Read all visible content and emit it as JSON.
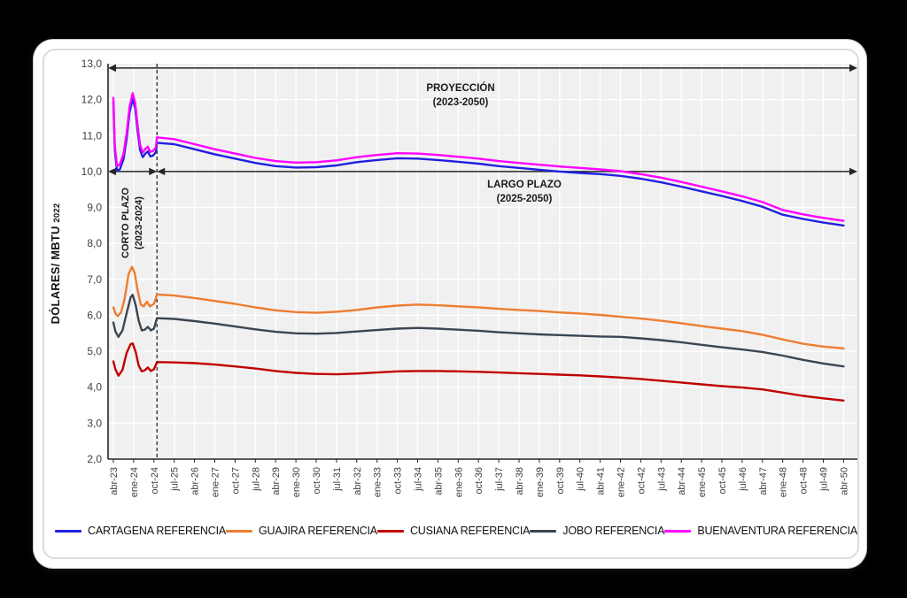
{
  "figure": {
    "background": "#000000",
    "card_background": "#FFFFFF"
  },
  "annotations": {
    "proyeccion_line1": "PROYECCIÓN",
    "proyeccion_line2": "(2023-2050)",
    "largo_line1": "LARGO PLAZO",
    "largo_line2": "(2025-2050)",
    "corto_line1": "CORTO PLAZO",
    "corto_line2": "(2023-2024)",
    "y_axis_title": "DÓLARES/ MBTU",
    "y_axis_title_suffix": "2022"
  },
  "chart_data": {
    "type": "line",
    "title": "",
    "xlabel": "",
    "ylabel": "DÓLARES/ MBTU 2022",
    "ylim": [
      2,
      13
    ],
    "grid": true,
    "legend_position": "bottom",
    "plot_background": "#F1F0F0",
    "gridline_color": "#FFFFFF",
    "axis_color": "#262626",
    "y_ticks": [
      "13,0",
      "12,0",
      "11,0",
      "10,0",
      "9,0",
      "8,0",
      "7,0",
      "6,0",
      "5,0",
      "4,0",
      "3,0",
      "2,0"
    ],
    "x_tick_labels": [
      "abr-23",
      "ene-24",
      "oct-24",
      "jul-25",
      "abr-26",
      "ene-27",
      "oct-27",
      "jul-28",
      "abr-29",
      "ene-30",
      "oct-30",
      "jul-31",
      "abr-32",
      "ene-33",
      "oct-33",
      "jul-34",
      "abr-35",
      "ene-36",
      "oct-36",
      "jul-37",
      "abr-38",
      "ene-39",
      "oct-39",
      "jul-40",
      "abr-41",
      "ene-42",
      "oct-42",
      "jul-43",
      "abr-44",
      "ene-45",
      "oct-45",
      "jul-46",
      "abr-47",
      "ene-48",
      "oct-48",
      "jul-49",
      "abr-50"
    ],
    "x_tick_spacing_months": 9,
    "dashed_divider_x": 2.15,
    "arrows": [
      {
        "id": "proyeccion-span",
        "label": "PROYECCIÓN (2023-2050)",
        "y_value": 12.88,
        "x_start": "plot-left",
        "x_end": "plot-right"
      },
      {
        "id": "corto-plazo-span",
        "label": "CORTO PLAZO (2023-2024)",
        "y_value": 10.0,
        "x_start": "plot-left",
        "x_end": "divider"
      },
      {
        "id": "largo-plazo-span",
        "label": "LARGO PLAZO (2025-2050)",
        "y_value": 10.0,
        "x_start": "divider",
        "x_end": "plot-right"
      }
    ],
    "series": [
      {
        "name": "CARTAGENA REFERENCIA",
        "color": "#2020E0",
        "points": [
          [
            0,
            11.95
          ],
          [
            0.07,
            10.6
          ],
          [
            0.18,
            10.02
          ],
          [
            0.32,
            10.06
          ],
          [
            0.5,
            10.35
          ],
          [
            0.65,
            10.9
          ],
          [
            0.8,
            11.65
          ],
          [
            0.95,
            12.02
          ],
          [
            1.08,
            11.75
          ],
          [
            1.2,
            11.1
          ],
          [
            1.32,
            10.6
          ],
          [
            1.45,
            10.4
          ],
          [
            1.58,
            10.5
          ],
          [
            1.7,
            10.56
          ],
          [
            1.82,
            10.42
          ],
          [
            1.95,
            10.44
          ],
          [
            2.1,
            10.55
          ],
          [
            2.15,
            10.8
          ],
          [
            3,
            10.76
          ],
          [
            4,
            10.62
          ],
          [
            5,
            10.48
          ],
          [
            6,
            10.36
          ],
          [
            7,
            10.24
          ],
          [
            8,
            10.15
          ],
          [
            9,
            10.11
          ],
          [
            10,
            10.12
          ],
          [
            11,
            10.17
          ],
          [
            12,
            10.26
          ],
          [
            13,
            10.32
          ],
          [
            14,
            10.37
          ],
          [
            15,
            10.36
          ],
          [
            16,
            10.32
          ],
          [
            17,
            10.27
          ],
          [
            18,
            10.22
          ],
          [
            19,
            10.15
          ],
          [
            20,
            10.1
          ],
          [
            21,
            10.05
          ],
          [
            22,
            10.0
          ],
          [
            23,
            9.96
          ],
          [
            24,
            9.93
          ],
          [
            25,
            9.88
          ],
          [
            26,
            9.8
          ],
          [
            27,
            9.7
          ],
          [
            28,
            9.58
          ],
          [
            29,
            9.45
          ],
          [
            30,
            9.32
          ],
          [
            31,
            9.18
          ],
          [
            32,
            9.02
          ],
          [
            33,
            8.8
          ],
          [
            34,
            8.68
          ],
          [
            35,
            8.58
          ],
          [
            36,
            8.5
          ]
        ]
      },
      {
        "name": "GUAJIRA REFERENCIA",
        "color": "#ED7D31",
        "points": [
          [
            0,
            6.22
          ],
          [
            0.1,
            6.05
          ],
          [
            0.22,
            5.98
          ],
          [
            0.38,
            6.08
          ],
          [
            0.55,
            6.45
          ],
          [
            0.75,
            7.15
          ],
          [
            0.92,
            7.35
          ],
          [
            1.05,
            7.18
          ],
          [
            1.2,
            6.68
          ],
          [
            1.35,
            6.3
          ],
          [
            1.5,
            6.25
          ],
          [
            1.65,
            6.38
          ],
          [
            1.8,
            6.25
          ],
          [
            2.0,
            6.32
          ],
          [
            2.15,
            6.58
          ],
          [
            3,
            6.55
          ],
          [
            4,
            6.48
          ],
          [
            5,
            6.4
          ],
          [
            6,
            6.32
          ],
          [
            7,
            6.22
          ],
          [
            8,
            6.14
          ],
          [
            9,
            6.09
          ],
          [
            10,
            6.07
          ],
          [
            11,
            6.1
          ],
          [
            12,
            6.15
          ],
          [
            13,
            6.22
          ],
          [
            14,
            6.27
          ],
          [
            15,
            6.3
          ],
          [
            16,
            6.28
          ],
          [
            17,
            6.25
          ],
          [
            18,
            6.22
          ],
          [
            19,
            6.18
          ],
          [
            20,
            6.15
          ],
          [
            21,
            6.12
          ],
          [
            22,
            6.08
          ],
          [
            23,
            6.05
          ],
          [
            24,
            6.01
          ],
          [
            25,
            5.96
          ],
          [
            26,
            5.91
          ],
          [
            27,
            5.85
          ],
          [
            28,
            5.78
          ],
          [
            29,
            5.7
          ],
          [
            30,
            5.63
          ],
          [
            31,
            5.56
          ],
          [
            32,
            5.46
          ],
          [
            33,
            5.33
          ],
          [
            34,
            5.21
          ],
          [
            35,
            5.13
          ],
          [
            36,
            5.08
          ]
        ]
      },
      {
        "name": "CUSIANA REFERENCIA",
        "color": "#C00000",
        "points": [
          [
            0,
            4.72
          ],
          [
            0.1,
            4.5
          ],
          [
            0.25,
            4.32
          ],
          [
            0.45,
            4.48
          ],
          [
            0.65,
            4.95
          ],
          [
            0.85,
            5.2
          ],
          [
            0.95,
            5.22
          ],
          [
            1.1,
            4.98
          ],
          [
            1.25,
            4.6
          ],
          [
            1.4,
            4.44
          ],
          [
            1.55,
            4.47
          ],
          [
            1.7,
            4.55
          ],
          [
            1.85,
            4.45
          ],
          [
            2.0,
            4.5
          ],
          [
            2.15,
            4.7
          ],
          [
            3,
            4.69
          ],
          [
            4,
            4.67
          ],
          [
            5,
            4.63
          ],
          [
            6,
            4.58
          ],
          [
            7,
            4.52
          ],
          [
            8,
            4.45
          ],
          [
            9,
            4.4
          ],
          [
            10,
            4.37
          ],
          [
            11,
            4.36
          ],
          [
            12,
            4.38
          ],
          [
            13,
            4.41
          ],
          [
            14,
            4.44
          ],
          [
            15,
            4.45
          ],
          [
            16,
            4.45
          ],
          [
            17,
            4.44
          ],
          [
            18,
            4.43
          ],
          [
            19,
            4.41
          ],
          [
            20,
            4.39
          ],
          [
            21,
            4.37
          ],
          [
            22,
            4.35
          ],
          [
            23,
            4.33
          ],
          [
            24,
            4.3
          ],
          [
            25,
            4.27
          ],
          [
            26,
            4.23
          ],
          [
            27,
            4.18
          ],
          [
            28,
            4.13
          ],
          [
            29,
            4.08
          ],
          [
            30,
            4.03
          ],
          [
            31,
            3.99
          ],
          [
            32,
            3.94
          ],
          [
            33,
            3.85
          ],
          [
            34,
            3.76
          ],
          [
            35,
            3.69
          ],
          [
            36,
            3.63
          ]
        ]
      },
      {
        "name": "JOBO REFERENCIA",
        "color": "#3A4652",
        "points": [
          [
            0,
            5.8
          ],
          [
            0.1,
            5.55
          ],
          [
            0.25,
            5.4
          ],
          [
            0.45,
            5.58
          ],
          [
            0.65,
            6.05
          ],
          [
            0.85,
            6.5
          ],
          [
            0.95,
            6.57
          ],
          [
            1.1,
            6.28
          ],
          [
            1.25,
            5.85
          ],
          [
            1.4,
            5.58
          ],
          [
            1.55,
            5.6
          ],
          [
            1.7,
            5.68
          ],
          [
            1.85,
            5.58
          ],
          [
            2.0,
            5.63
          ],
          [
            2.15,
            5.92
          ],
          [
            3,
            5.9
          ],
          [
            4,
            5.84
          ],
          [
            5,
            5.77
          ],
          [
            6,
            5.69
          ],
          [
            7,
            5.61
          ],
          [
            8,
            5.54
          ],
          [
            9,
            5.5
          ],
          [
            10,
            5.49
          ],
          [
            11,
            5.51
          ],
          [
            12,
            5.55
          ],
          [
            13,
            5.59
          ],
          [
            14,
            5.63
          ],
          [
            15,
            5.65
          ],
          [
            16,
            5.63
          ],
          [
            17,
            5.6
          ],
          [
            18,
            5.57
          ],
          [
            19,
            5.53
          ],
          [
            20,
            5.5
          ],
          [
            21,
            5.47
          ],
          [
            22,
            5.45
          ],
          [
            23,
            5.43
          ],
          [
            24,
            5.41
          ],
          [
            25,
            5.4
          ],
          [
            26,
            5.36
          ],
          [
            27,
            5.31
          ],
          [
            28,
            5.25
          ],
          [
            29,
            5.18
          ],
          [
            30,
            5.11
          ],
          [
            31,
            5.05
          ],
          [
            32,
            4.98
          ],
          [
            33,
            4.88
          ],
          [
            34,
            4.76
          ],
          [
            35,
            4.66
          ],
          [
            36,
            4.58
          ]
        ]
      },
      {
        "name": "BUENAVENTURA REFERENCIA",
        "color": "#FF00FF",
        "points": [
          [
            0,
            12.05
          ],
          [
            0.07,
            10.72
          ],
          [
            0.18,
            10.15
          ],
          [
            0.32,
            10.2
          ],
          [
            0.5,
            10.5
          ],
          [
            0.65,
            11.05
          ],
          [
            0.8,
            11.8
          ],
          [
            0.95,
            12.18
          ],
          [
            1.08,
            11.9
          ],
          [
            1.2,
            11.25
          ],
          [
            1.32,
            10.73
          ],
          [
            1.45,
            10.53
          ],
          [
            1.58,
            10.63
          ],
          [
            1.7,
            10.69
          ],
          [
            1.82,
            10.55
          ],
          [
            1.95,
            10.57
          ],
          [
            2.1,
            10.68
          ],
          [
            2.15,
            10.95
          ],
          [
            3,
            10.9
          ],
          [
            4,
            10.76
          ],
          [
            5,
            10.62
          ],
          [
            6,
            10.5
          ],
          [
            7,
            10.38
          ],
          [
            8,
            10.29
          ],
          [
            9,
            10.25
          ],
          [
            10,
            10.26
          ],
          [
            11,
            10.31
          ],
          [
            12,
            10.4
          ],
          [
            13,
            10.46
          ],
          [
            14,
            10.51
          ],
          [
            15,
            10.5
          ],
          [
            16,
            10.46
          ],
          [
            17,
            10.41
          ],
          [
            18,
            10.36
          ],
          [
            19,
            10.29
          ],
          [
            20,
            10.24
          ],
          [
            21,
            10.19
          ],
          [
            22,
            10.14
          ],
          [
            23,
            10.1
          ],
          [
            24,
            10.06
          ],
          [
            25,
            10.01
          ],
          [
            26,
            9.93
          ],
          [
            27,
            9.83
          ],
          [
            28,
            9.71
          ],
          [
            29,
            9.58
          ],
          [
            30,
            9.45
          ],
          [
            31,
            9.31
          ],
          [
            32,
            9.15
          ],
          [
            33,
            8.93
          ],
          [
            34,
            8.81
          ],
          [
            35,
            8.71
          ],
          [
            36,
            8.63
          ]
        ]
      }
    ]
  }
}
